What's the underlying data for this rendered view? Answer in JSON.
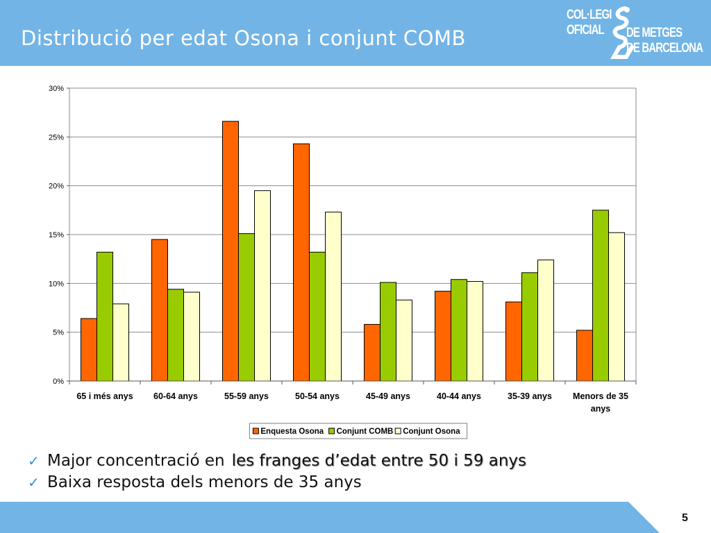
{
  "slide": {
    "title": "Distribució per edat Osona i conjunt COMB",
    "page_number": "5"
  },
  "logo": {
    "line1": "COL·LEGI",
    "line2": "OFICIAL",
    "line3": "DE METGES",
    "line4": "DE BARCELONA"
  },
  "colors": {
    "header": "#72b4e6",
    "enquesta_osona": "#ff6600",
    "conjunt_comb": "#99cc00",
    "conjunt_osona": "#ffffcc"
  },
  "bullets": [
    {
      "icon": "checkmark-icon",
      "text": "Major concentració en",
      "highlight": "les franges d’edat entre 50 i 59 anys"
    },
    {
      "icon": "checkmark-icon",
      "text": "Baixa resposta dels menors de 35 anys"
    }
  ],
  "chart_data": {
    "type": "bar",
    "title": "",
    "xlabel": "",
    "ylabel": "",
    "categories": [
      "65 i més anys",
      "60-64 anys",
      "55-59 anys",
      "50-54 anys",
      "45-49 anys",
      "40-44 anys",
      "35-39 anys",
      "Menors de 35 anys"
    ],
    "series": [
      {
        "name": "Enquesta Osona",
        "color": "#ff6600",
        "values": [
          6.4,
          14.5,
          26.6,
          24.3,
          5.8,
          9.2,
          8.1,
          5.2
        ]
      },
      {
        "name": "Conjunt COMB",
        "color": "#99cc00",
        "values": [
          13.2,
          9.4,
          15.1,
          13.2,
          10.1,
          10.4,
          11.1,
          17.5
        ]
      },
      {
        "name": "Conjunt Osona",
        "color": "#ffffcc",
        "values": [
          7.9,
          9.1,
          19.5,
          17.3,
          8.3,
          10.2,
          12.4,
          15.2
        ]
      }
    ],
    "yticks": [
      "0%",
      "5%",
      "10%",
      "15%",
      "20%",
      "25%",
      "30%"
    ],
    "ylim": [
      0,
      30
    ],
    "grid": true,
    "legend": "bottom"
  }
}
